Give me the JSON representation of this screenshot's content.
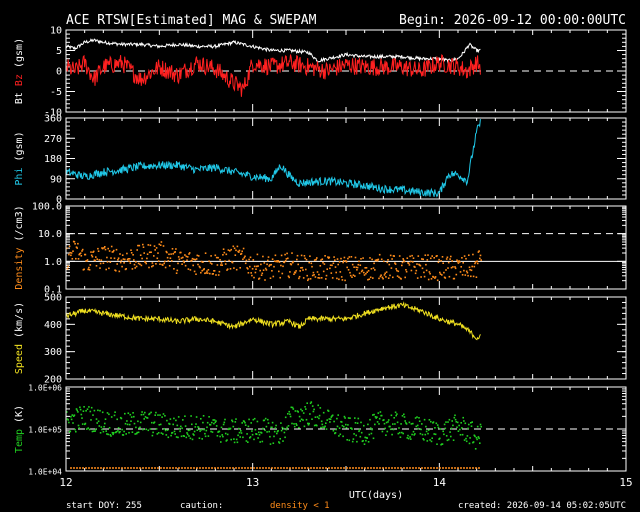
{
  "header": {
    "title": "ACE RTSW[Estimated] MAG & SWEPAM",
    "begin": "Begin: 2026-09-12 00:00:00UTC"
  },
  "footer": {
    "start_doy": "start DOY: 255",
    "caution": "caution:",
    "density_note": "density < 1",
    "created": "created: 2026-09-14 05:02:05UTC"
  },
  "colors": {
    "background": "#000000",
    "frame": "#ffffff",
    "bt": "#ffffff",
    "bz": "#ff2020",
    "phi": "#20c8e8",
    "density": "#ff8c1a",
    "speed": "#f0e020",
    "temp": "#20d020",
    "caution": "#ff8c1a"
  },
  "chart_data": {
    "type": "line",
    "x_axis": {
      "label": "UTC(days)",
      "range": [
        12,
        15
      ],
      "ticks": [
        "12",
        "13",
        "14",
        "15"
      ],
      "data_end_day": 14.22
    },
    "panels": [
      {
        "id": "mag",
        "ylabel_parts": [
          {
            "text": "Bt ",
            "color": "#ffffff"
          },
          {
            "text": "Bz ",
            "color": "#ff2020"
          },
          {
            "text": "(gsm)",
            "color": "#ffffff"
          }
        ],
        "scale": "linear",
        "ylim": [
          -10,
          10
        ],
        "ticks": [
          -10,
          -5,
          0,
          5,
          10
        ],
        "tick_labels": [
          "-10",
          "-5",
          "0",
          "5",
          "10"
        ],
        "dashed_at": [
          0
        ],
        "series": [
          {
            "name": "Bt",
            "color": "#ffffff",
            "style": "line",
            "noise": 0.4,
            "points": [
              [
                12.0,
                6.0
              ],
              [
                12.05,
                5.5
              ],
              [
                12.1,
                7.0
              ],
              [
                12.15,
                7.5
              ],
              [
                12.2,
                7.0
              ],
              [
                12.3,
                6.5
              ],
              [
                12.4,
                6.5
              ],
              [
                12.5,
                6.0
              ],
              [
                12.6,
                6.5
              ],
              [
                12.7,
                6.0
              ],
              [
                12.8,
                6.0
              ],
              [
                12.9,
                7.0
              ],
              [
                13.0,
                6.0
              ],
              [
                13.1,
                5.0
              ],
              [
                13.2,
                5.0
              ],
              [
                13.3,
                4.5
              ],
              [
                13.35,
                2.5
              ],
              [
                13.4,
                3.0
              ],
              [
                13.5,
                4.0
              ],
              [
                13.6,
                3.5
              ],
              [
                13.7,
                3.5
              ],
              [
                13.8,
                3.5
              ],
              [
                13.9,
                3.0
              ],
              [
                14.0,
                3.0
              ],
              [
                14.05,
                2.5
              ],
              [
                14.1,
                3.0
              ],
              [
                14.13,
                4.5
              ],
              [
                14.16,
                6.5
              ],
              [
                14.2,
                5.0
              ],
              [
                14.22,
                5.0
              ]
            ]
          },
          {
            "name": "Bz",
            "color": "#ff2020",
            "style": "line",
            "noise": 2.2,
            "points": [
              [
                12.0,
                1.0
              ],
              [
                12.05,
                0.0
              ],
              [
                12.1,
                2.0
              ],
              [
                12.15,
                -2.0
              ],
              [
                12.2,
                1.0
              ],
              [
                12.3,
                2.0
              ],
              [
                12.4,
                -2.0
              ],
              [
                12.5,
                1.0
              ],
              [
                12.6,
                -1.0
              ],
              [
                12.7,
                2.0
              ],
              [
                12.8,
                0.5
              ],
              [
                12.9,
                -3.0
              ],
              [
                12.95,
                -4.5
              ],
              [
                13.0,
                2.0
              ],
              [
                13.1,
                1.0
              ],
              [
                13.2,
                2.0
              ],
              [
                13.3,
                1.0
              ],
              [
                13.4,
                0.0
              ],
              [
                13.5,
                1.5
              ],
              [
                13.6,
                1.0
              ],
              [
                13.7,
                1.0
              ],
              [
                13.8,
                1.0
              ],
              [
                13.9,
                0.0
              ],
              [
                14.0,
                2.0
              ],
              [
                14.1,
                1.0
              ],
              [
                14.15,
                0.0
              ],
              [
                14.2,
                2.0
              ],
              [
                14.22,
                1.0
              ]
            ]
          }
        ]
      },
      {
        "id": "phi",
        "ylabel_parts": [
          {
            "text": "Phi ",
            "color": "#20c8e8"
          },
          {
            "text": "(gsm)",
            "color": "#ffffff"
          }
        ],
        "scale": "linear",
        "ylim": [
          0,
          360
        ],
        "ticks": [
          0,
          90,
          180,
          270,
          360
        ],
        "tick_labels": [
          "0",
          "90",
          "180",
          "270",
          "360"
        ],
        "dashed_at": [],
        "series": [
          {
            "name": "Phi",
            "color": "#20c8e8",
            "style": "line",
            "noise": 18,
            "points": [
              [
                12.0,
                120
              ],
              [
                12.05,
                110
              ],
              [
                12.1,
                100
              ],
              [
                12.2,
                120
              ],
              [
                12.3,
                130
              ],
              [
                12.4,
                145
              ],
              [
                12.5,
                150
              ],
              [
                12.6,
                150
              ],
              [
                12.7,
                130
              ],
              [
                12.8,
                140
              ],
              [
                12.9,
                120
              ],
              [
                13.0,
                100
              ],
              [
                13.1,
                90
              ],
              [
                13.15,
                150
              ],
              [
                13.2,
                100
              ],
              [
                13.25,
                70
              ],
              [
                13.3,
                75
              ],
              [
                13.4,
                80
              ],
              [
                13.5,
                70
              ],
              [
                13.6,
                60
              ],
              [
                13.7,
                45
              ],
              [
                13.8,
                40
              ],
              [
                13.9,
                30
              ],
              [
                14.0,
                25
              ],
              [
                14.05,
                110
              ],
              [
                14.1,
                110
              ],
              [
                14.15,
                80
              ],
              [
                14.2,
                300
              ],
              [
                14.22,
                340
              ]
            ]
          }
        ]
      },
      {
        "id": "density",
        "ylabel_parts": [
          {
            "text": "Density ",
            "color": "#ff8c1a"
          },
          {
            "text": "(/cm3)",
            "color": "#ffffff"
          }
        ],
        "scale": "log",
        "ylim": [
          0.1,
          100
        ],
        "ticks": [
          0.1,
          1.0,
          10.0,
          100.0
        ],
        "tick_labels": [
          "0.1",
          "1.0",
          "10.0",
          "100.0"
        ],
        "dashed_at": [
          10
        ],
        "solid_at": [
          1
        ],
        "series": [
          {
            "name": "Density",
            "color": "#ff8c1a",
            "style": "dots",
            "noise": 0.45,
            "points": [
              [
                12.0,
                1.5
              ],
              [
                12.05,
                2.5
              ],
              [
                12.1,
                1.0
              ],
              [
                12.2,
                1.5
              ],
              [
                12.3,
                1.2
              ],
              [
                12.4,
                1.5
              ],
              [
                12.5,
                2.0
              ],
              [
                12.6,
                1.0
              ],
              [
                12.7,
                1.0
              ],
              [
                12.8,
                0.8
              ],
              [
                12.9,
                1.5
              ],
              [
                13.0,
                0.7
              ],
              [
                13.1,
                0.6
              ],
              [
                13.2,
                0.8
              ],
              [
                13.3,
                0.6
              ],
              [
                13.4,
                0.6
              ],
              [
                13.5,
                0.6
              ],
              [
                13.6,
                0.6
              ],
              [
                13.7,
                0.7
              ],
              [
                13.8,
                0.6
              ],
              [
                13.9,
                0.7
              ],
              [
                14.0,
                0.6
              ],
              [
                14.1,
                0.6
              ],
              [
                14.2,
                0.7
              ],
              [
                14.22,
                2.0
              ]
            ]
          }
        ]
      },
      {
        "id": "speed",
        "ylabel_parts": [
          {
            "text": "Speed ",
            "color": "#f0e020"
          },
          {
            "text": "(km/s)",
            "color": "#ffffff"
          }
        ],
        "scale": "linear",
        "ylim": [
          200,
          500
        ],
        "ticks": [
          200,
          300,
          400,
          500
        ],
        "tick_labels": [
          "200",
          "300",
          "400",
          "500"
        ],
        "dashed_at": [],
        "series": [
          {
            "name": "Speed",
            "color": "#f0e020",
            "style": "line",
            "noise": 10,
            "points": [
              [
                12.0,
                430
              ],
              [
                12.05,
                440
              ],
              [
                12.1,
                450
              ],
              [
                12.2,
                440
              ],
              [
                12.3,
                430
              ],
              [
                12.4,
                420
              ],
              [
                12.5,
                420
              ],
              [
                12.6,
                410
              ],
              [
                12.7,
                420
              ],
              [
                12.8,
                410
              ],
              [
                12.9,
                390
              ],
              [
                13.0,
                420
              ],
              [
                13.1,
                400
              ],
              [
                13.2,
                410
              ],
              [
                13.25,
                390
              ],
              [
                13.3,
                420
              ],
              [
                13.4,
                420
              ],
              [
                13.5,
                420
              ],
              [
                13.6,
                440
              ],
              [
                13.7,
                460
              ],
              [
                13.8,
                470
              ],
              [
                13.9,
                450
              ],
              [
                14.0,
                420
              ],
              [
                14.1,
                400
              ],
              [
                14.15,
                380
              ],
              [
                14.2,
                350
              ],
              [
                14.22,
                355
              ]
            ]
          }
        ]
      },
      {
        "id": "temp",
        "ylabel_parts": [
          {
            "text": "Temp ",
            "color": "#20d020"
          },
          {
            "text": "(K)",
            "color": "#ffffff"
          }
        ],
        "scale": "log",
        "ylim": [
          10000,
          1000000
        ],
        "ticks": [
          10000,
          100000,
          1000000
        ],
        "tick_labels": [
          "1.0E+04",
          "1.0E+05",
          "1.0E+06"
        ],
        "dashed_at": [
          100000
        ],
        "series": [
          {
            "name": "Temp",
            "color": "#20d020",
            "style": "dots",
            "noise": 0.3,
            "points": [
              [
                12.0,
                150000
              ],
              [
                12.1,
                200000
              ],
              [
                12.2,
                150000
              ],
              [
                12.3,
                120000
              ],
              [
                12.4,
                150000
              ],
              [
                12.5,
                130000
              ],
              [
                12.6,
                110000
              ],
              [
                12.7,
                120000
              ],
              [
                12.8,
                100000
              ],
              [
                12.9,
                90000
              ],
              [
                13.0,
                100000
              ],
              [
                13.1,
                90000
              ],
              [
                13.15,
                80000
              ],
              [
                13.2,
                180000
              ],
              [
                13.3,
                250000
              ],
              [
                13.4,
                150000
              ],
              [
                13.5,
                100000
              ],
              [
                13.6,
                90000
              ],
              [
                13.7,
                150000
              ],
              [
                13.8,
                120000
              ],
              [
                13.9,
                100000
              ],
              [
                14.0,
                80000
              ],
              [
                14.1,
                120000
              ],
              [
                14.2,
                60000
              ],
              [
                14.22,
                80000
              ]
            ]
          }
        ]
      }
    ]
  }
}
